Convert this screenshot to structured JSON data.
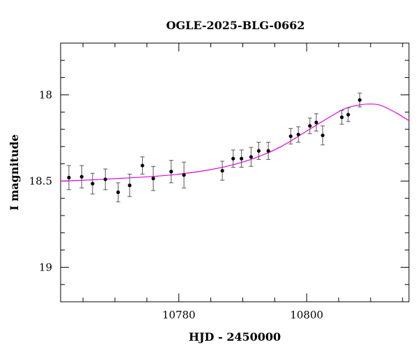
{
  "chart_data": {
    "type": "scatter",
    "title": "OGLE-2025-BLG-0662",
    "xlabel": "HJD - 2450000",
    "ylabel": "I magnitude",
    "xlim": [
      10761.5,
      10816.0
    ],
    "ylim": [
      19.2,
      17.7
    ],
    "y_inverted": true,
    "x_ticks": [
      10780,
      10800
    ],
    "y_ticks": [
      18,
      18.5,
      19
    ],
    "grid": false,
    "points": [
      {
        "x": 10762.8,
        "y": 18.48,
        "err": 0.07
      },
      {
        "x": 10764.8,
        "y": 18.475,
        "err": 0.065
      },
      {
        "x": 10766.5,
        "y": 18.515,
        "err": 0.06
      },
      {
        "x": 10768.5,
        "y": 18.49,
        "err": 0.06
      },
      {
        "x": 10770.5,
        "y": 18.565,
        "err": 0.055
      },
      {
        "x": 10772.3,
        "y": 18.525,
        "err": 0.065
      },
      {
        "x": 10774.3,
        "y": 18.41,
        "err": 0.05
      },
      {
        "x": 10776.0,
        "y": 18.485,
        "err": 0.07
      },
      {
        "x": 10778.8,
        "y": 18.445,
        "err": 0.065
      },
      {
        "x": 10780.8,
        "y": 18.465,
        "err": 0.075
      },
      {
        "x": 10786.8,
        "y": 18.44,
        "err": 0.055
      },
      {
        "x": 10788.5,
        "y": 18.37,
        "err": 0.05
      },
      {
        "x": 10789.8,
        "y": 18.37,
        "err": 0.05
      },
      {
        "x": 10791.3,
        "y": 18.36,
        "err": 0.055
      },
      {
        "x": 10792.5,
        "y": 18.325,
        "err": 0.05
      },
      {
        "x": 10794.0,
        "y": 18.325,
        "err": 0.05
      },
      {
        "x": 10797.5,
        "y": 18.24,
        "err": 0.045
      },
      {
        "x": 10798.7,
        "y": 18.23,
        "err": 0.045
      },
      {
        "x": 10800.5,
        "y": 18.18,
        "err": 0.045
      },
      {
        "x": 10801.5,
        "y": 18.16,
        "err": 0.05
      },
      {
        "x": 10802.5,
        "y": 18.235,
        "err": 0.055
      },
      {
        "x": 10805.5,
        "y": 18.13,
        "err": 0.04
      },
      {
        "x": 10806.5,
        "y": 18.115,
        "err": 0.04
      },
      {
        "x": 10808.3,
        "y": 18.03,
        "err": 0.04
      }
    ],
    "model_curve": {
      "color": "#e000e0",
      "x": [
        10761.5,
        10764,
        10768,
        10772,
        10776,
        10780,
        10784,
        10788,
        10792,
        10796,
        10800,
        10804,
        10806,
        10808,
        10810,
        10811.5,
        10813,
        10814.5,
        10816
      ],
      "y": [
        18.5,
        18.497,
        18.49,
        18.482,
        18.473,
        18.46,
        18.44,
        18.41,
        18.365,
        18.3,
        18.21,
        18.12,
        18.08,
        18.06,
        18.053,
        18.06,
        18.085,
        18.115,
        18.15
      ]
    },
    "point_color": "#000000",
    "errorbar_color": "#555555"
  }
}
